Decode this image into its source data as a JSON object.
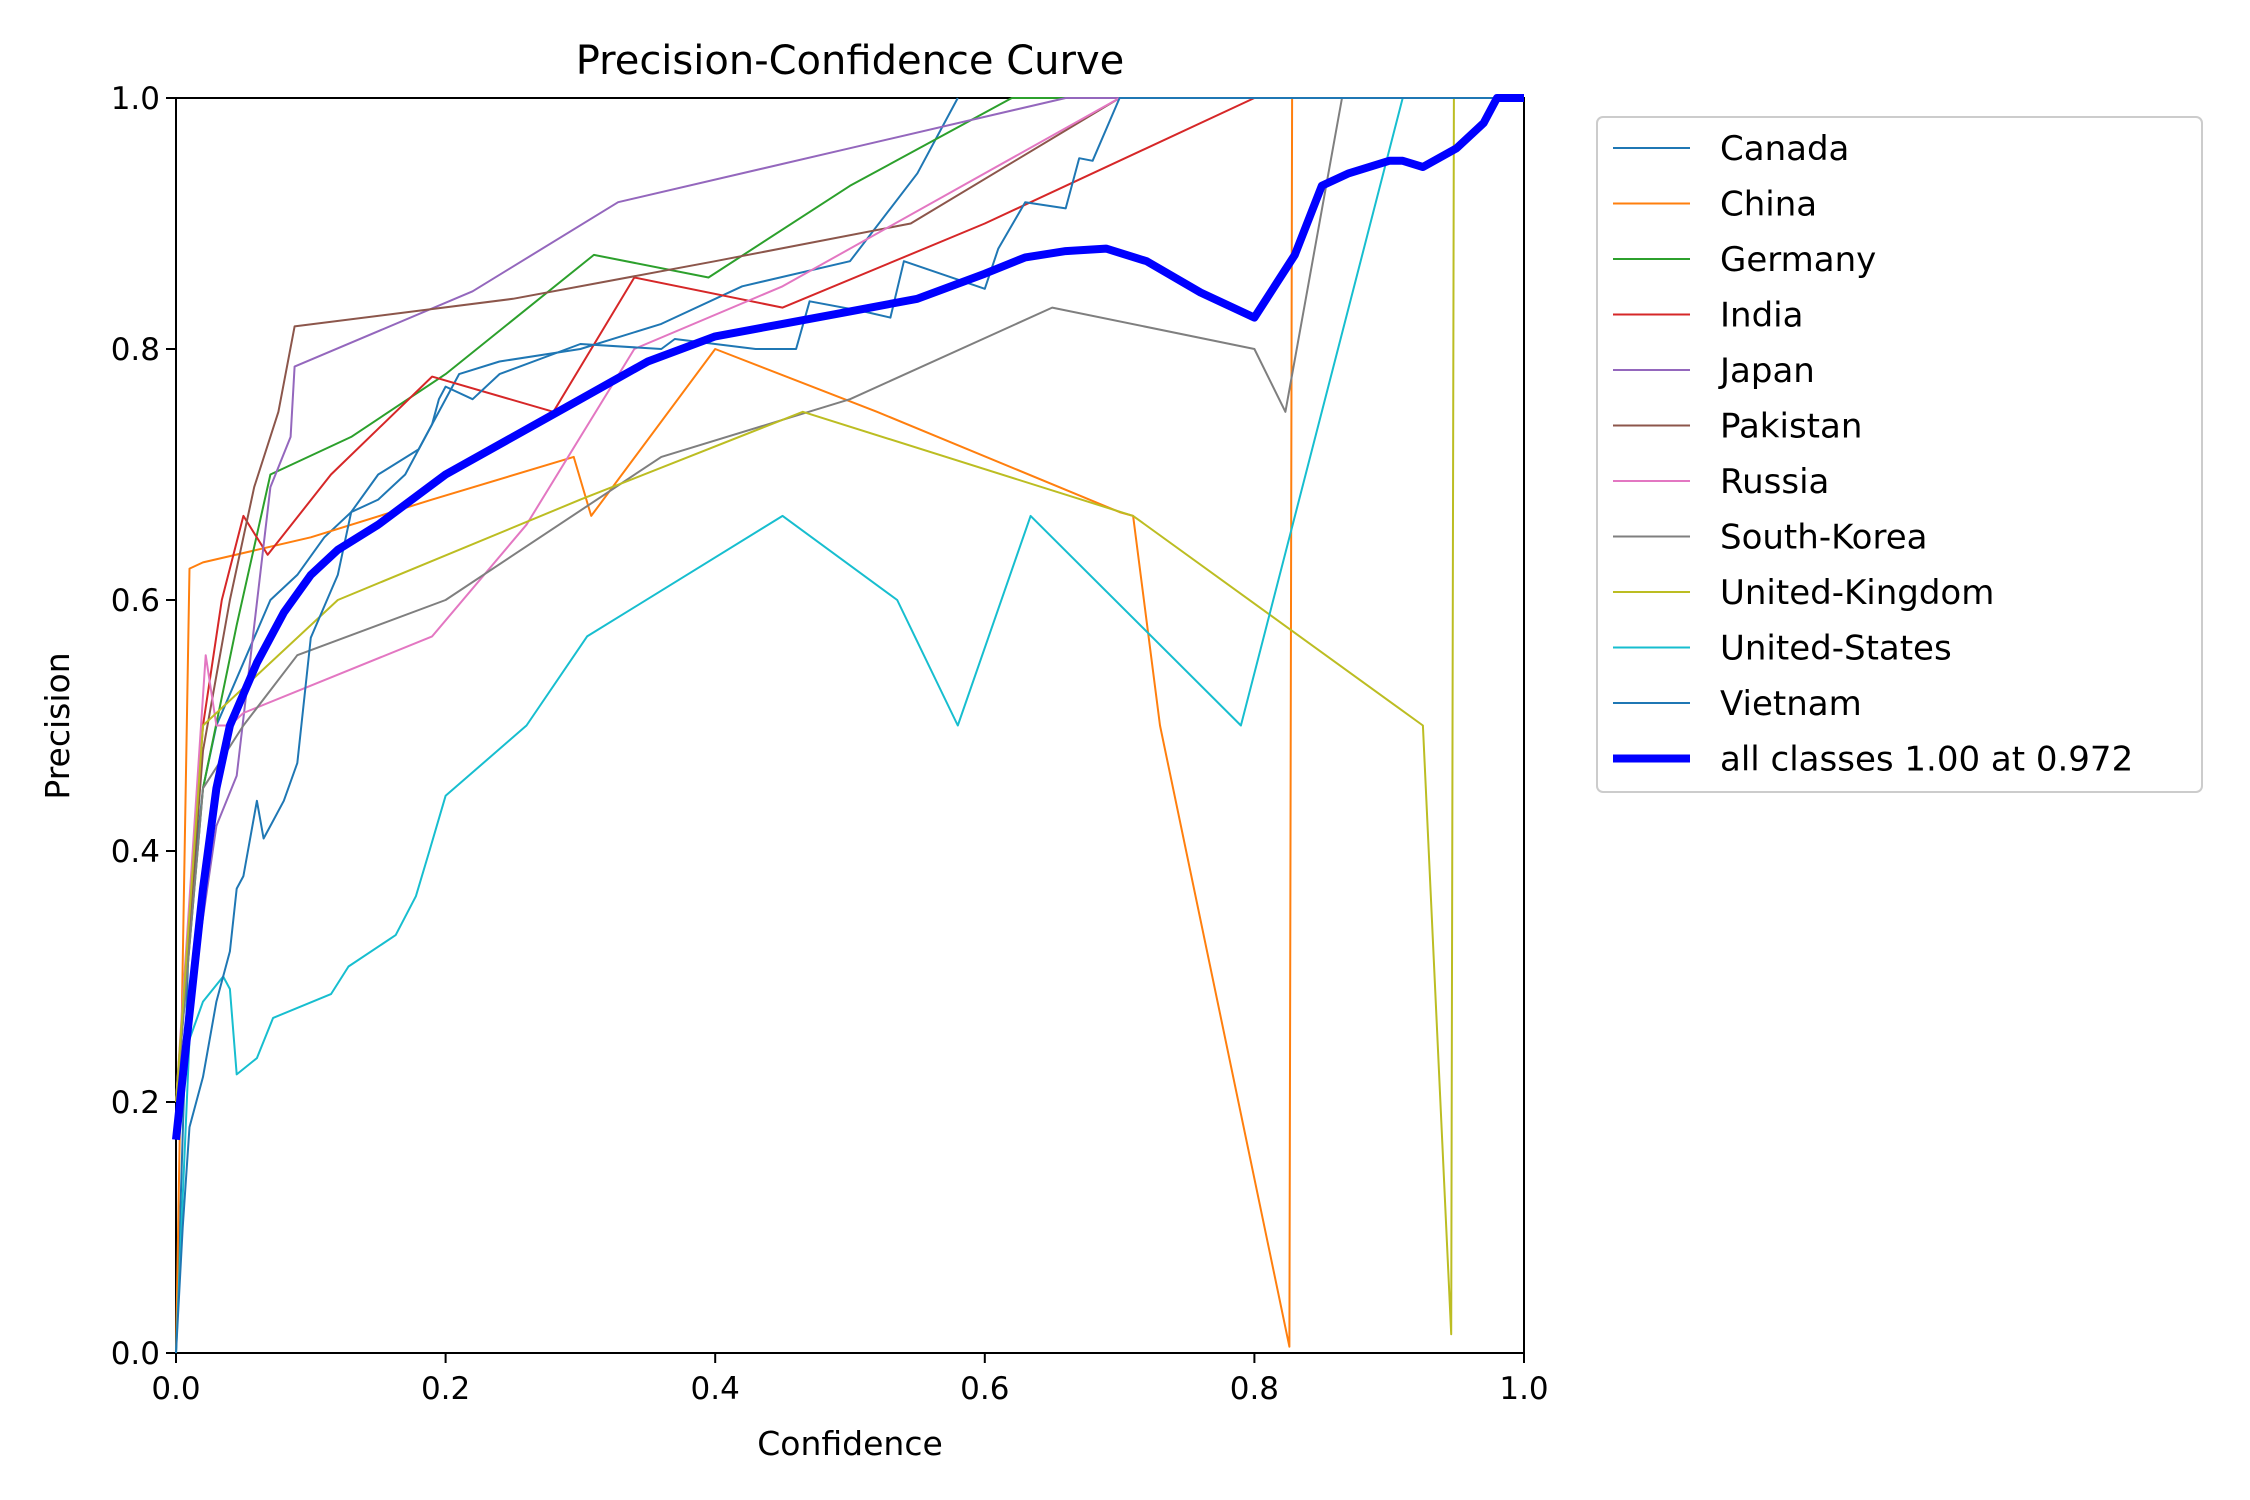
{
  "chart_data": {
    "type": "line",
    "title": "Precision-Confidence Curve",
    "xlabel": "Confidence",
    "ylabel": "Precision",
    "xlim": [
      0,
      1
    ],
    "ylim": [
      0,
      1
    ],
    "xticks": [
      "0.0",
      "0.2",
      "0.4",
      "0.6",
      "0.8",
      "1.0"
    ],
    "yticks": [
      "0.0",
      "0.2",
      "0.4",
      "0.6",
      "0.8",
      "1.0"
    ],
    "grid": false,
    "legend_position": "outside-right",
    "series": [
      {
        "name": "Canada",
        "color": "#1f77b4",
        "width": 2,
        "x": [
          0.0,
          0.01,
          0.02,
          0.03,
          0.05,
          0.07,
          0.09,
          0.11,
          0.13,
          0.15,
          0.18,
          0.21,
          0.24,
          0.3,
          0.36,
          0.42,
          0.5,
          0.55,
          0.58
        ],
        "y": [
          0.0,
          0.35,
          0.45,
          0.5,
          0.55,
          0.6,
          0.62,
          0.65,
          0.67,
          0.7,
          0.72,
          0.78,
          0.79,
          0.8,
          0.82,
          0.85,
          0.87,
          0.94,
          1.0
        ]
      },
      {
        "name": "China",
        "color": "#ff7f0e",
        "width": 2,
        "x": [
          0.0,
          0.01,
          0.02,
          0.1,
          0.19,
          0.295,
          0.308,
          0.4,
          0.52,
          0.7,
          0.71,
          0.73,
          0.826,
          0.828,
          1.0
        ],
        "y": [
          0.0,
          0.625,
          0.63,
          0.65,
          0.68,
          0.714,
          0.667,
          0.8,
          0.75,
          0.67,
          0.667,
          0.5,
          0.005,
          1.0,
          1.0
        ]
      },
      {
        "name": "Germany",
        "color": "#2ca02c",
        "width": 2,
        "x": [
          0.0,
          0.02,
          0.045,
          0.07,
          0.13,
          0.2,
          0.31,
          0.395,
          0.5,
          0.62,
          1.0
        ],
        "y": [
          0.2,
          0.45,
          0.58,
          0.7,
          0.73,
          0.78,
          0.875,
          0.857,
          0.93,
          1.0,
          1.0
        ]
      },
      {
        "name": "India",
        "color": "#d62728",
        "width": 2,
        "x": [
          0.0,
          0.02,
          0.034,
          0.05,
          0.068,
          0.115,
          0.19,
          0.28,
          0.34,
          0.45,
          0.6,
          0.8,
          0.81,
          1.0
        ],
        "y": [
          0.2,
          0.5,
          0.6,
          0.667,
          0.636,
          0.7,
          0.778,
          0.75,
          0.857,
          0.833,
          0.9,
          1.0,
          1.0,
          1.0
        ]
      },
      {
        "name": "Japan",
        "color": "#9467bd",
        "width": 2,
        "x": [
          0.0,
          0.03,
          0.045,
          0.07,
          0.085,
          0.088,
          0.22,
          0.328,
          0.5,
          0.66,
          1.0
        ],
        "y": [
          0.2,
          0.42,
          0.46,
          0.69,
          0.73,
          0.786,
          0.846,
          0.917,
          0.96,
          1.0,
          1.0
        ]
      },
      {
        "name": "Pakistan",
        "color": "#8c564b",
        "width": 2,
        "x": [
          0.0,
          0.02,
          0.04,
          0.058,
          0.076,
          0.088,
          0.25,
          0.4,
          0.545,
          0.7,
          1.0
        ],
        "y": [
          0.2,
          0.48,
          0.6,
          0.69,
          0.75,
          0.818,
          0.84,
          0.87,
          0.9,
          1.0,
          1.0
        ]
      },
      {
        "name": "Russia",
        "color": "#e377c2",
        "width": 2,
        "x": [
          0.0,
          0.022,
          0.03,
          0.04,
          0.05,
          0.19,
          0.26,
          0.34,
          0.45,
          0.7,
          1.0
        ],
        "y": [
          0.2,
          0.556,
          0.5,
          0.5,
          0.51,
          0.571,
          0.66,
          0.8,
          0.85,
          1.0,
          1.0
        ]
      },
      {
        "name": "South-Korea",
        "color": "#7f7f7f",
        "width": 2,
        "x": [
          0.0,
          0.02,
          0.05,
          0.09,
          0.2,
          0.36,
          0.5,
          0.65,
          0.8,
          0.823,
          0.865,
          1.0
        ],
        "y": [
          0.2,
          0.45,
          0.5,
          0.556,
          0.6,
          0.714,
          0.76,
          0.833,
          0.8,
          0.75,
          1.0,
          1.0
        ]
      },
      {
        "name": "United-Kingdom",
        "color": "#bcbd22",
        "width": 2,
        "x": [
          0.0,
          0.02,
          0.05,
          0.12,
          0.3,
          0.465,
          0.71,
          0.925,
          0.946,
          0.948,
          1.0
        ],
        "y": [
          0.2,
          0.5,
          0.53,
          0.6,
          0.68,
          0.75,
          0.667,
          0.5,
          0.015,
          1.0,
          1.0
        ]
      },
      {
        "name": "United-States",
        "color": "#17becf",
        "width": 2,
        "x": [
          0.0,
          0.01,
          0.02,
          0.035,
          0.04,
          0.045,
          0.06,
          0.072,
          0.115,
          0.128,
          0.163,
          0.178,
          0.188,
          0.2,
          0.26,
          0.305,
          0.45,
          0.535,
          0.58,
          0.634,
          0.79,
          0.91,
          0.97,
          1.0
        ],
        "y": [
          0.0,
          0.25,
          0.28,
          0.3,
          0.29,
          0.222,
          0.235,
          0.267,
          0.286,
          0.308,
          0.333,
          0.364,
          0.4,
          0.444,
          0.5,
          0.571,
          0.667,
          0.6,
          0.5,
          0.667,
          0.5,
          1.0,
          1.0,
          1.0
        ]
      },
      {
        "name": "Vietnam",
        "color": "#1f77b4",
        "width": 2,
        "x": [
          0.0,
          0.005,
          0.01,
          0.02,
          0.03,
          0.04,
          0.045,
          0.05,
          0.06,
          0.065,
          0.07,
          0.08,
          0.09,
          0.1,
          0.12,
          0.13,
          0.15,
          0.17,
          0.19,
          0.195,
          0.2,
          0.22,
          0.24,
          0.3,
          0.36,
          0.37,
          0.43,
          0.46,
          0.47,
          0.51,
          0.53,
          0.54,
          0.6,
          0.61,
          0.63,
          0.66,
          0.67,
          0.68,
          0.7,
          1.0
        ],
        "y": [
          0.0,
          0.1,
          0.18,
          0.22,
          0.28,
          0.32,
          0.37,
          0.38,
          0.44,
          0.41,
          0.42,
          0.44,
          0.47,
          0.57,
          0.62,
          0.67,
          0.68,
          0.7,
          0.74,
          0.76,
          0.77,
          0.76,
          0.78,
          0.804,
          0.8,
          0.808,
          0.8,
          0.8,
          0.838,
          0.83,
          0.825,
          0.87,
          0.848,
          0.88,
          0.917,
          0.912,
          0.952,
          0.95,
          1.0,
          1.0
        ]
      },
      {
        "name": "all classes 1.00 at 0.972",
        "color": "#0000ff",
        "width": 8,
        "x": [
          0.0,
          0.005,
          0.01,
          0.02,
          0.03,
          0.04,
          0.06,
          0.08,
          0.1,
          0.12,
          0.15,
          0.2,
          0.25,
          0.3,
          0.35,
          0.4,
          0.45,
          0.5,
          0.55,
          0.6,
          0.63,
          0.66,
          0.69,
          0.72,
          0.76,
          0.8,
          0.83,
          0.85,
          0.87,
          0.9,
          0.91,
          0.925,
          0.95,
          0.97,
          0.98,
          1.0
        ],
        "y": [
          0.17,
          0.22,
          0.27,
          0.37,
          0.45,
          0.5,
          0.55,
          0.59,
          0.62,
          0.64,
          0.66,
          0.7,
          0.73,
          0.76,
          0.79,
          0.81,
          0.82,
          0.83,
          0.84,
          0.86,
          0.873,
          0.878,
          0.88,
          0.87,
          0.845,
          0.825,
          0.875,
          0.93,
          0.94,
          0.95,
          0.95,
          0.945,
          0.96,
          0.98,
          1.0,
          1.0
        ]
      }
    ]
  }
}
